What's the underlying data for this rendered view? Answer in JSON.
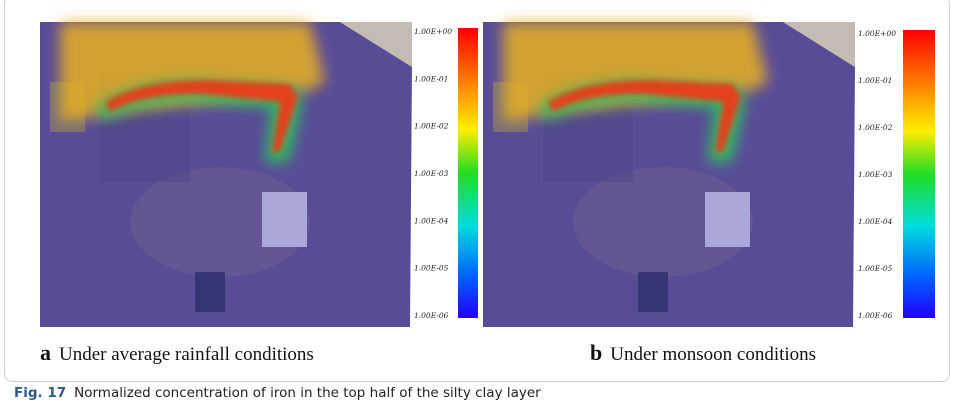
{
  "panels": [
    {
      "label": "a",
      "caption": "Under average rainfall conditions",
      "colorbar": [
        "1.00E+00",
        "1.00E-01",
        "1.00E-02",
        "1.00E-03",
        "1.00E-04",
        "1.00E-05",
        "1.00E-06"
      ]
    },
    {
      "label": "b",
      "caption": "Under monsoon conditions",
      "colorbar": [
        "1.00E+00",
        "1.00E-01",
        "1.00E-02",
        "1.00E-03",
        "1.00E-04",
        "1.00E-05",
        "1.00E-06"
      ]
    }
  ],
  "figure": {
    "number": "Fig. 17",
    "caption": "Normalized concentration of iron in the top half of the silty clay layer"
  }
}
